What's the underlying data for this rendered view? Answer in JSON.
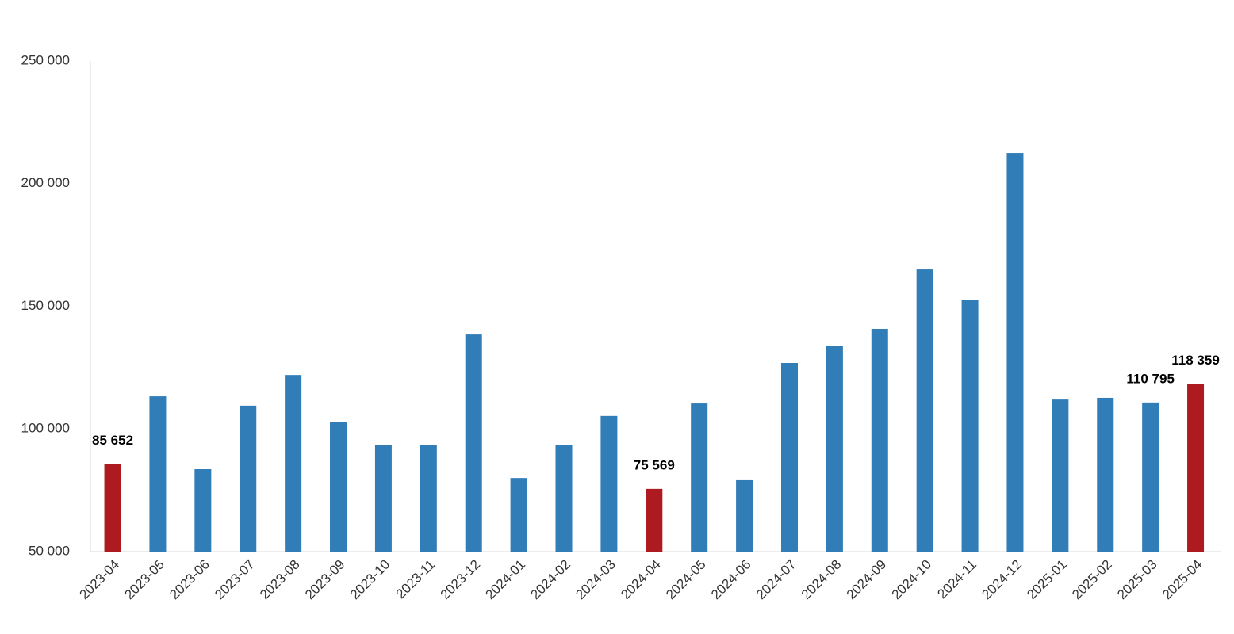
{
  "chart_data": {
    "type": "bar",
    "categories": [
      "2023-04",
      "2023-05",
      "2023-06",
      "2023-07",
      "2023-08",
      "2023-09",
      "2023-10",
      "2023-11",
      "2023-12",
      "2024-01",
      "2024-02",
      "2024-03",
      "2024-04",
      "2024-05",
      "2024-06",
      "2024-07",
      "2024-08",
      "2024-09",
      "2024-10",
      "2024-11",
      "2024-12",
      "2025-01",
      "2025-02",
      "2025-03",
      "2025-04"
    ],
    "values": [
      85652,
      113300,
      83600,
      109500,
      122000,
      102700,
      93600,
      93300,
      138500,
      80000,
      93600,
      105300,
      75569,
      110400,
      79100,
      126900,
      134000,
      140800,
      165000,
      152700,
      212500,
      112000,
      112700,
      110795,
      118359
    ],
    "value_labels": [
      "85 652",
      null,
      null,
      null,
      null,
      null,
      null,
      null,
      null,
      null,
      null,
      null,
      "75 569",
      null,
      null,
      null,
      null,
      null,
      null,
      null,
      null,
      null,
      null,
      "110 795",
      "118 359"
    ],
    "colors": [
      "#ad1a1f",
      "#317db8",
      "#317db8",
      "#317db8",
      "#317db8",
      "#317db8",
      "#317db8",
      "#317db8",
      "#317db8",
      "#317db8",
      "#317db8",
      "#317db8",
      "#ad1a1f",
      "#317db8",
      "#317db8",
      "#317db8",
      "#317db8",
      "#317db8",
      "#317db8",
      "#317db8",
      "#317db8",
      "#317db8",
      "#317db8",
      "#317db8",
      "#ad1a1f"
    ],
    "ylim": [
      50000,
      250000
    ],
    "yticks": [
      {
        "value": 50000,
        "label": "50 000"
      },
      {
        "value": 100000,
        "label": "100 000"
      },
      {
        "value": 150000,
        "label": "150 000"
      },
      {
        "value": 200000,
        "label": "200 000"
      },
      {
        "value": 250000,
        "label": "250 000"
      }
    ],
    "grid": false
  }
}
